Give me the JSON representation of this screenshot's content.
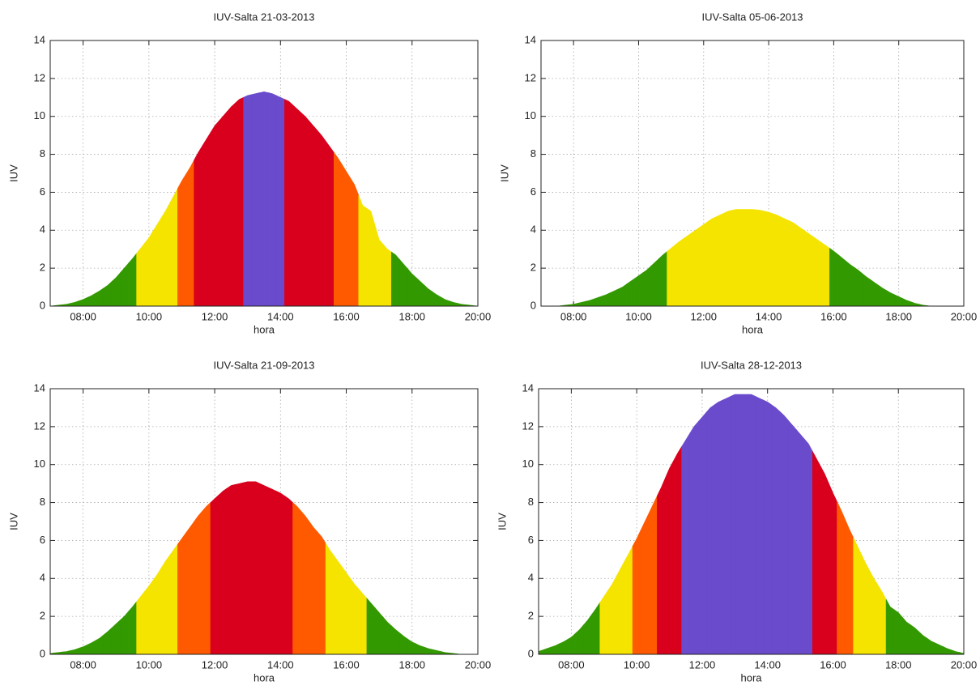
{
  "chart_data": [
    {
      "type": "area",
      "title": "IUV-Salta 21-03-2013",
      "x_label": "hora",
      "y_label": "IUV",
      "x": [
        7,
        7.25,
        7.5,
        7.75,
        8,
        8.25,
        8.5,
        8.75,
        9,
        9.25,
        9.5,
        9.75,
        10,
        10.25,
        10.5,
        10.75,
        11,
        11.25,
        11.5,
        11.75,
        12,
        12.25,
        12.5,
        12.75,
        13,
        13.25,
        13.5,
        13.75,
        14,
        14.25,
        14.5,
        14.75,
        15,
        15.25,
        15.5,
        15.75,
        16,
        16.25,
        16.5,
        16.75,
        17,
        17.25,
        17.5,
        17.75,
        18,
        18.25,
        18.5,
        18.75,
        19,
        19.25,
        19.5,
        19.75,
        20
      ],
      "values": [
        0,
        0.05,
        0.1,
        0.2,
        0.35,
        0.55,
        0.8,
        1.1,
        1.5,
        2,
        2.5,
        3.05,
        3.6,
        4.3,
        5,
        5.8,
        6.6,
        7.3,
        8.1,
        8.8,
        9.5,
        10,
        10.5,
        10.9,
        11.1,
        11.2,
        11.3,
        11.2,
        11,
        10.8,
        10.4,
        10,
        9.5,
        9,
        8.4,
        7.8,
        7.1,
        6.4,
        5.3,
        5,
        3.5,
        3,
        2.7,
        2.2,
        1.7,
        1.3,
        0.9,
        0.6,
        0.35,
        0.2,
        0.1,
        0.05,
        0
      ],
      "color_bands": [
        {
          "from": 0,
          "color": "#339900"
        },
        {
          "from": 3,
          "color": "#f5e400"
        },
        {
          "from": 6,
          "color": "#ff5a00"
        },
        {
          "from": 8,
          "color": "#d8001c"
        },
        {
          "from": 11,
          "color": "#6a4bcc"
        }
      ],
      "xlim": [
        7,
        20
      ],
      "ylim": [
        0,
        14
      ],
      "xticks": [
        {
          "value": 8,
          "label": "08:00"
        },
        {
          "value": 10,
          "label": "10:00"
        },
        {
          "value": 12,
          "label": "12:00"
        },
        {
          "value": 14,
          "label": "14:00"
        },
        {
          "value": 16,
          "label": "16:00"
        },
        {
          "value": 18,
          "label": "18:00"
        },
        {
          "value": 20,
          "label": "20:00"
        }
      ],
      "yticks": [
        0,
        2,
        4,
        6,
        8,
        10,
        12,
        14
      ],
      "grid": true
    },
    {
      "type": "area",
      "title": "IUV-Salta 05-06-2013",
      "x_label": "hora",
      "y_label": "IUV",
      "x": [
        7,
        7.25,
        7.5,
        7.75,
        8,
        8.25,
        8.5,
        8.75,
        9,
        9.25,
        9.5,
        9.75,
        10,
        10.25,
        10.5,
        10.75,
        11,
        11.25,
        11.5,
        11.75,
        12,
        12.25,
        12.5,
        12.75,
        13,
        13.25,
        13.5,
        13.75,
        14,
        14.25,
        14.5,
        14.75,
        15,
        15.25,
        15.5,
        15.75,
        16,
        16.25,
        16.5,
        16.75,
        17,
        17.25,
        17.5,
        17.75,
        18,
        18.25,
        18.5,
        18.75,
        19,
        19.25,
        19.5,
        19.75,
        20
      ],
      "values": [
        0,
        0,
        0,
        0.05,
        0.1,
        0.2,
        0.3,
        0.45,
        0.6,
        0.8,
        1,
        1.3,
        1.6,
        1.9,
        2.3,
        2.7,
        3.05,
        3.4,
        3.7,
        4,
        4.3,
        4.6,
        4.8,
        5,
        5.1,
        5.1,
        5.1,
        5.05,
        4.95,
        4.8,
        4.6,
        4.4,
        4.1,
        3.8,
        3.5,
        3.2,
        2.9,
        2.55,
        2.2,
        1.9,
        1.55,
        1.25,
        0.95,
        0.7,
        0.5,
        0.3,
        0.15,
        0.05,
        0,
        0,
        0,
        0,
        0
      ],
      "color_bands": [
        {
          "from": 0,
          "color": "#339900"
        },
        {
          "from": 3,
          "color": "#f5e400"
        },
        {
          "from": 6,
          "color": "#ff5a00"
        },
        {
          "from": 8,
          "color": "#d8001c"
        },
        {
          "from": 11,
          "color": "#6a4bcc"
        }
      ],
      "xlim": [
        7,
        20
      ],
      "ylim": [
        0,
        14
      ],
      "xticks": [
        {
          "value": 8,
          "label": "08:00"
        },
        {
          "value": 10,
          "label": "10:00"
        },
        {
          "value": 12,
          "label": "12:00"
        },
        {
          "value": 14,
          "label": "14:00"
        },
        {
          "value": 16,
          "label": "16:00"
        },
        {
          "value": 18,
          "label": "18:00"
        },
        {
          "value": 20,
          "label": "20:00"
        }
      ],
      "yticks": [
        0,
        2,
        4,
        6,
        8,
        10,
        12,
        14
      ],
      "grid": true
    },
    {
      "type": "area",
      "title": "IUV-Salta 21-09-2013",
      "x_label": "hora",
      "y_label": "IUV",
      "x": [
        7,
        7.25,
        7.5,
        7.75,
        8,
        8.25,
        8.5,
        8.75,
        9,
        9.25,
        9.5,
        9.75,
        10,
        10.25,
        10.5,
        10.75,
        11,
        11.25,
        11.5,
        11.75,
        12,
        12.25,
        12.5,
        12.75,
        13,
        13.25,
        13.5,
        13.75,
        14,
        14.25,
        14.5,
        14.75,
        15,
        15.25,
        15.5,
        15.75,
        16,
        16.25,
        16.5,
        16.75,
        17,
        17.25,
        17.5,
        17.75,
        18,
        18.25,
        18.5,
        18.75,
        19,
        19.25,
        19.5,
        19.75,
        20
      ],
      "values": [
        0.05,
        0.1,
        0.15,
        0.25,
        0.4,
        0.6,
        0.85,
        1.2,
        1.6,
        2,
        2.5,
        3.05,
        3.6,
        4.2,
        4.9,
        5.5,
        6.1,
        6.7,
        7.3,
        7.8,
        8.2,
        8.6,
        8.9,
        9,
        9.1,
        9.1,
        8.9,
        8.7,
        8.5,
        8.2,
        7.8,
        7.3,
        6.7,
        6.2,
        5.5,
        4.9,
        4.3,
        3.7,
        3.2,
        2.7,
        2.2,
        1.7,
        1.3,
        0.95,
        0.65,
        0.45,
        0.3,
        0.2,
        0.1,
        0.05,
        0,
        0,
        0
      ],
      "color_bands": [
        {
          "from": 0,
          "color": "#339900"
        },
        {
          "from": 3,
          "color": "#f5e400"
        },
        {
          "from": 6,
          "color": "#ff5a00"
        },
        {
          "from": 8,
          "color": "#d8001c"
        },
        {
          "from": 11,
          "color": "#6a4bcc"
        }
      ],
      "xlim": [
        7,
        20
      ],
      "ylim": [
        0,
        14
      ],
      "xticks": [
        {
          "value": 8,
          "label": "08:00"
        },
        {
          "value": 10,
          "label": "10:00"
        },
        {
          "value": 12,
          "label": "12:00"
        },
        {
          "value": 14,
          "label": "14:00"
        },
        {
          "value": 16,
          "label": "16:00"
        },
        {
          "value": 18,
          "label": "18:00"
        },
        {
          "value": 20,
          "label": "20:00"
        }
      ],
      "yticks": [
        0,
        2,
        4,
        6,
        8,
        10,
        12,
        14
      ],
      "grid": true
    },
    {
      "type": "area",
      "title": "IUV-Salta 28-12-2013",
      "x_label": "hora",
      "y_label": "IUV",
      "x": [
        7,
        7.25,
        7.5,
        7.75,
        8,
        8.25,
        8.5,
        8.75,
        9,
        9.25,
        9.5,
        9.75,
        10,
        10.25,
        10.5,
        10.75,
        11,
        11.25,
        11.5,
        11.75,
        12,
        12.25,
        12.5,
        12.75,
        13,
        13.25,
        13.5,
        13.75,
        14,
        14.25,
        14.5,
        14.75,
        15,
        15.25,
        15.5,
        15.75,
        16,
        16.25,
        16.5,
        16.75,
        17,
        17.25,
        17.5,
        17.75,
        18,
        18.25,
        18.5,
        18.75,
        19,
        19.25,
        19.5,
        19.75,
        20
      ],
      "values": [
        0.15,
        0.3,
        0.45,
        0.65,
        0.9,
        1.3,
        1.8,
        2.4,
        3.05,
        3.7,
        4.5,
        5.3,
        6.1,
        7,
        7.9,
        8.8,
        9.8,
        10.6,
        11.3,
        12,
        12.5,
        13,
        13.3,
        13.5,
        13.7,
        13.7,
        13.7,
        13.5,
        13.3,
        13,
        12.6,
        12.1,
        11.6,
        11.1,
        10.3,
        9.5,
        8.5,
        7.6,
        6.6,
        5.7,
        4.8,
        4,
        3.3,
        2.5,
        2.2,
        1.7,
        1.4,
        1,
        0.7,
        0.5,
        0.3,
        0.15,
        0.05
      ],
      "color_bands": [
        {
          "from": 0,
          "color": "#339900"
        },
        {
          "from": 3,
          "color": "#f5e400"
        },
        {
          "from": 6,
          "color": "#ff5a00"
        },
        {
          "from": 8,
          "color": "#d8001c"
        },
        {
          "from": 11,
          "color": "#6a4bcc"
        }
      ],
      "xlim": [
        7,
        20
      ],
      "ylim": [
        0,
        14
      ],
      "xticks": [
        {
          "value": 8,
          "label": "08:00"
        },
        {
          "value": 10,
          "label": "10:00"
        },
        {
          "value": 12,
          "label": "12:00"
        },
        {
          "value": 14,
          "label": "14:00"
        },
        {
          "value": 16,
          "label": "16:00"
        },
        {
          "value": 18,
          "label": "18:00"
        },
        {
          "value": 20,
          "label": "20:00"
        }
      ],
      "yticks": [
        0,
        2,
        4,
        6,
        8,
        10,
        12,
        14
      ],
      "grid": true
    }
  ]
}
